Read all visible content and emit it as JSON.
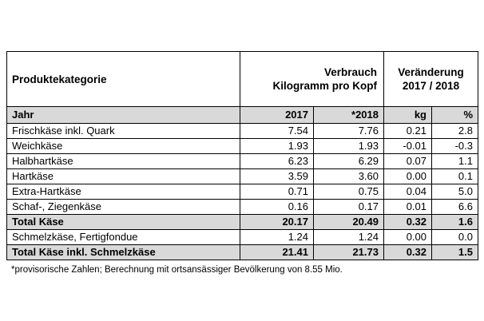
{
  "header": {
    "category": "Produktekategorie",
    "consumption_line1": "Verbrauch",
    "consumption_line2": "Kilogramm pro Kopf",
    "change_line1": "Veränderung",
    "change_line2": "2017 / 2018"
  },
  "subheader": {
    "label": "Jahr",
    "y2017": "2017",
    "y2018": "*2018",
    "kg": "kg",
    "pct": "%"
  },
  "rows": [
    {
      "label": "Frischkäse inkl. Quark",
      "v2017": "7.54",
      "v2018": "7.76",
      "kg": "0.21",
      "pct": "2.8",
      "total": false
    },
    {
      "label": "Weichkäse",
      "v2017": "1.93",
      "v2018": "1.93",
      "kg": "-0.01",
      "pct": "-0.3",
      "total": false
    },
    {
      "label": "Halbhartkäse",
      "v2017": "6.23",
      "v2018": "6.29",
      "kg": "0.07",
      "pct": "1.1",
      "total": false
    },
    {
      "label": "Hartkäse",
      "v2017": "3.59",
      "v2018": "3.60",
      "kg": "0.00",
      "pct": "0.1",
      "total": false
    },
    {
      "label": "Extra-Hartkäse",
      "v2017": "0.71",
      "v2018": "0.75",
      "kg": "0.04",
      "pct": "5.0",
      "total": false
    },
    {
      "label": "Schaf-, Ziegenkäse",
      "v2017": "0.16",
      "v2018": "0.17",
      "kg": "0.01",
      "pct": "6.6",
      "total": false
    },
    {
      "label": "Total Käse",
      "v2017": "20.17",
      "v2018": "20.49",
      "kg": "0.32",
      "pct": "1.6",
      "total": true
    },
    {
      "label": "Schmelzkäse, Fertigfondue",
      "v2017": "1.24",
      "v2018": "1.24",
      "kg": "0.00",
      "pct": "0.0",
      "total": false
    },
    {
      "label": "Total Käse inkl. Schmelzkäse",
      "v2017": "21.41",
      "v2018": "21.73",
      "kg": "0.32",
      "pct": "1.5",
      "total": true
    }
  ],
  "footnote": "*provisorische Zahlen; Berechnung mit ortsansässiger Bevölkerung von 8.55 Mio.",
  "colors": {
    "header_fill": "#d9d9d9",
    "border": "#000000"
  }
}
